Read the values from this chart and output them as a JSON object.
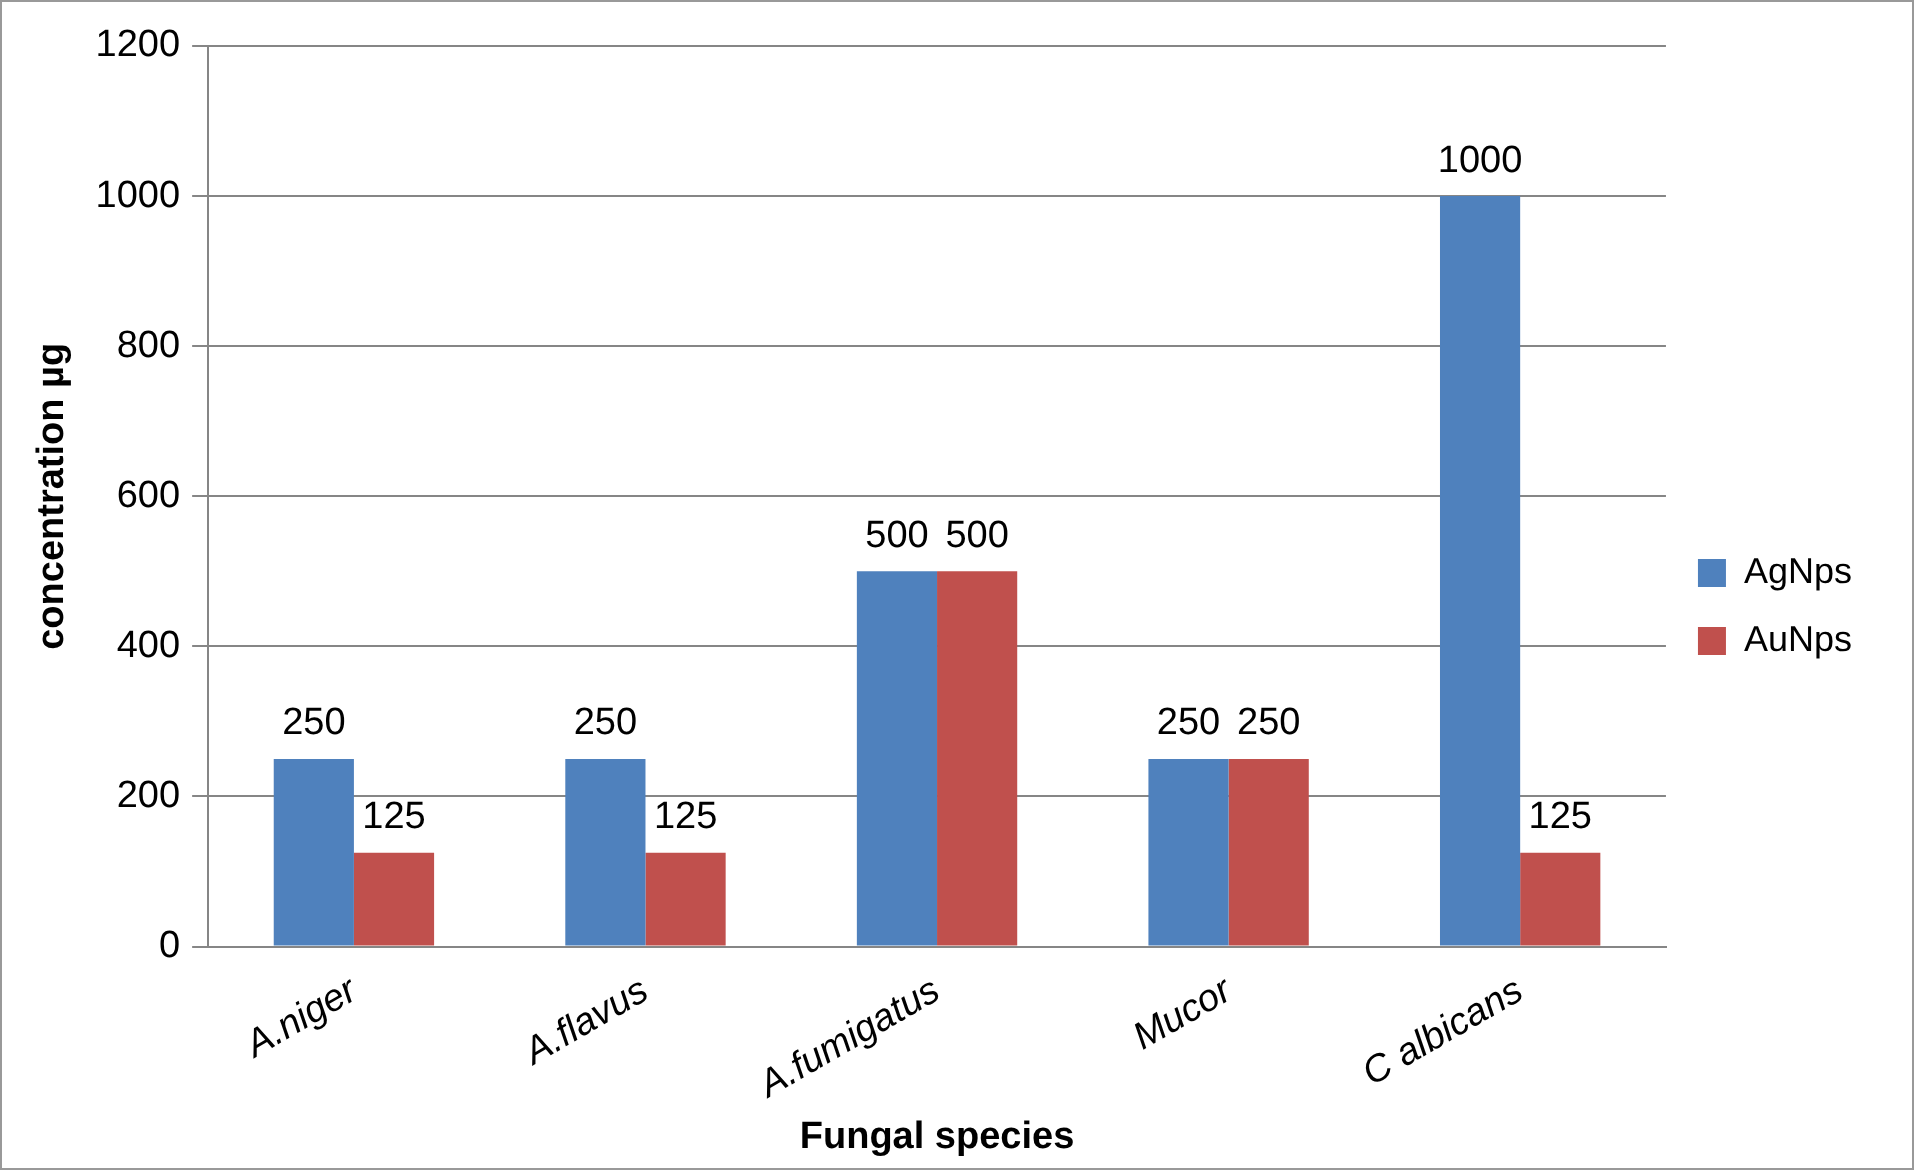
{
  "chart_data": {
    "type": "bar",
    "xlabel": "Fungal species",
    "ylabel": "concentration µg",
    "categories": [
      "A.niger",
      "A.flavus",
      "A.fumigatus",
      "Mucor",
      "C albicans"
    ],
    "series": [
      {
        "name": "AgNps",
        "color": "#4f81bd",
        "values": [
          250,
          250,
          500,
          250,
          1000
        ]
      },
      {
        "name": "AuNps",
        "color": "#c0504d",
        "values": [
          125,
          125,
          500,
          250,
          125
        ]
      }
    ],
    "ylim": [
      0,
      1200
    ],
    "yticks": [
      0,
      200,
      400,
      600,
      800,
      1000,
      1200
    ],
    "grid": "y",
    "legend": "right",
    "data_labels": true
  }
}
